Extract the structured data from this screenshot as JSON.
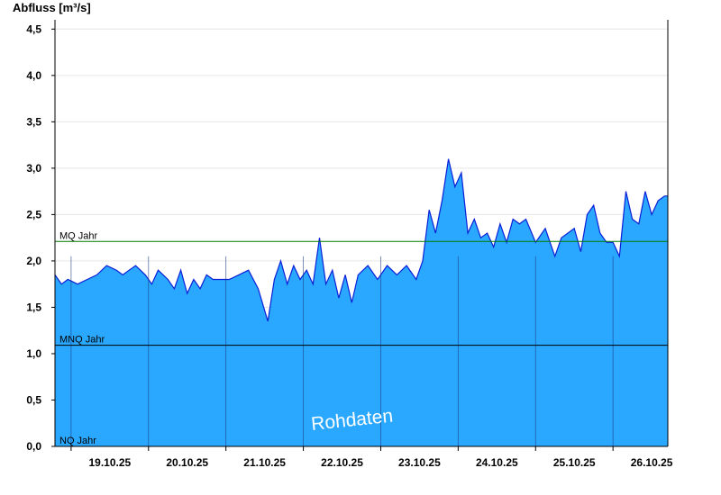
{
  "chart_data": {
    "type": "area",
    "title": "",
    "ylabel": "Abfluss [m³/s]",
    "xlabel": "",
    "ylim": [
      0,
      4.6
    ],
    "xlim": [
      "18.10.25 19:00",
      "26.10.25 17:00"
    ],
    "yticks": [
      0,
      0.5,
      1.0,
      1.5,
      2.0,
      2.5,
      3.0,
      3.5,
      4.0,
      4.5
    ],
    "ytick_labels": [
      "0,0",
      "0,5",
      "1,0",
      "1,5",
      "2,0",
      "2,5",
      "3,0",
      "3,5",
      "4,0",
      "4,5"
    ],
    "xtick_labels": [
      "19.10.25",
      "20.10.25",
      "21.10.25",
      "22.10.25",
      "23.10.25",
      "24.10.25",
      "25.10.25",
      "26.10.25"
    ],
    "grid": true,
    "fill_color": "#2aa8ff",
    "line_color": "#0a1fd6",
    "reference_lines": [
      {
        "label": "MQ Jahr",
        "value": 2.21,
        "color": "#007a00"
      },
      {
        "label": "MNQ Jahr",
        "value": 1.09,
        "color": "#000000"
      },
      {
        "label": "NQ Jahr",
        "value": 0.0,
        "color": "#000000"
      }
    ],
    "watermark": "Rohdaten",
    "series": [
      {
        "x": [
          "18.10.25 19:00",
          "18.10.25 21:00",
          "18.10.25 23:00",
          "19.10.25 02:00",
          "19.10.25 05:00",
          "19.10.25 08:00",
          "19.10.25 11:00",
          "19.10.25 14:00",
          "19.10.25 16:00",
          "19.10.25 18:00",
          "19.10.25 20:00",
          "19.10.25 23:00",
          "20.10.25 01:00",
          "20.10.25 03:00",
          "20.10.25 06:00",
          "20.10.25 08:00",
          "20.10.25 10:00",
          "20.10.25 12:00",
          "20.10.25 14:00",
          "20.10.25 16:00",
          "20.10.25 18:00",
          "20.10.25 20:00",
          "20.10.25 22:00",
          "21.10.25 01:00",
          "21.10.25 04:00",
          "21.10.25 07:00",
          "21.10.25 10:00",
          "21.10.25 13:00",
          "21.10.25 15:00",
          "21.10.25 17:00",
          "21.10.25 19:00",
          "21.10.25 21:00",
          "21.10.25 23:00",
          "22.10.25 01:00",
          "22.10.25 03:00",
          "22.10.25 05:00",
          "22.10.25 07:00",
          "22.10.25 09:00",
          "22.10.25 11:00",
          "22.10.25 13:00",
          "22.10.25 15:00",
          "22.10.25 17:00",
          "22.10.25 20:00",
          "22.10.25 23:00",
          "23.10.25 02:00",
          "23.10.25 05:00",
          "23.10.25 08:00",
          "23.10.25 11:00",
          "23.10.25 13:00",
          "23.10.25 15:00",
          "23.10.25 17:00",
          "23.10.25 19:00",
          "23.10.25 21:00",
          "23.10.25 23:00",
          "24.10.25 01:00",
          "24.10.25 03:00",
          "24.10.25 05:00",
          "24.10.25 07:00",
          "24.10.25 09:00",
          "24.10.25 11:00",
          "24.10.25 13:00",
          "24.10.25 15:00",
          "24.10.25 17:00",
          "24.10.25 19:00",
          "24.10.25 21:00",
          "25.10.25 00:00",
          "25.10.25 03:00",
          "25.10.25 06:00",
          "25.10.25 08:00",
          "25.10.25 10:00",
          "25.10.25 12:00",
          "25.10.25 14:00",
          "25.10.25 16:00",
          "25.10.25 18:00",
          "25.10.25 20:00",
          "25.10.25 22:00",
          "26.10.25 00:00",
          "26.10.25 02:00",
          "26.10.25 04:00",
          "26.10.25 06:00",
          "26.10.25 08:00",
          "26.10.25 10:00",
          "26.10.25 12:00",
          "26.10.25 14:00",
          "26.10.25 16:00",
          "26.10.25 17:00"
        ],
        "y": [
          1.85,
          1.75,
          1.8,
          1.75,
          1.8,
          1.85,
          1.95,
          1.9,
          1.85,
          1.9,
          1.95,
          1.85,
          1.75,
          1.9,
          1.8,
          1.7,
          1.9,
          1.65,
          1.8,
          1.7,
          1.85,
          1.8,
          1.8,
          1.8,
          1.85,
          1.9,
          1.7,
          1.35,
          1.8,
          2.0,
          1.75,
          1.95,
          1.8,
          1.9,
          1.75,
          2.25,
          1.75,
          1.9,
          1.6,
          1.85,
          1.55,
          1.85,
          1.95,
          1.8,
          1.95,
          1.85,
          1.95,
          1.8,
          2.0,
          2.55,
          2.3,
          2.65,
          3.1,
          2.8,
          2.95,
          2.3,
          2.45,
          2.25,
          2.3,
          2.15,
          2.4,
          2.2,
          2.45,
          2.4,
          2.45,
          2.2,
          2.35,
          2.05,
          2.25,
          2.3,
          2.35,
          2.1,
          2.5,
          2.6,
          2.3,
          2.2,
          2.2,
          2.05,
          2.75,
          2.45,
          2.4,
          2.75,
          2.5,
          2.65,
          2.7,
          2.7
        ]
      }
    ]
  }
}
